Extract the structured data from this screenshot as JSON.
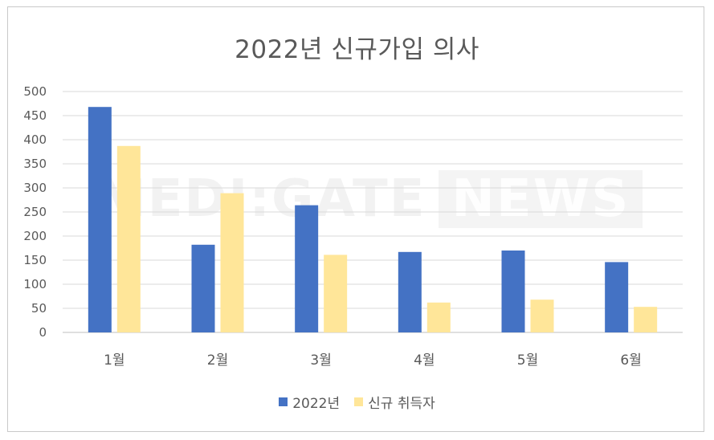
{
  "chart_data": {
    "type": "bar",
    "title": "2022년 신규가입 의사",
    "categories": [
      "1월",
      "2월",
      "3월",
      "4월",
      "5월",
      "6월"
    ],
    "series": [
      {
        "name": "2022년",
        "color": "#4472C4",
        "values": [
          468,
          182,
          264,
          167,
          170,
          146
        ]
      },
      {
        "name": "신규 취득자",
        "color": "#FFE699",
        "values": [
          387,
          289,
          161,
          62,
          68,
          53
        ]
      }
    ],
    "ylim": [
      0,
      500
    ],
    "yticks": [
      0,
      50,
      100,
      150,
      200,
      250,
      300,
      350,
      400,
      450,
      500
    ],
    "grid": true,
    "legend_position": "bottom"
  },
  "watermark": {
    "left_text": "MEDI:GATE",
    "right_text": "NEWS"
  }
}
